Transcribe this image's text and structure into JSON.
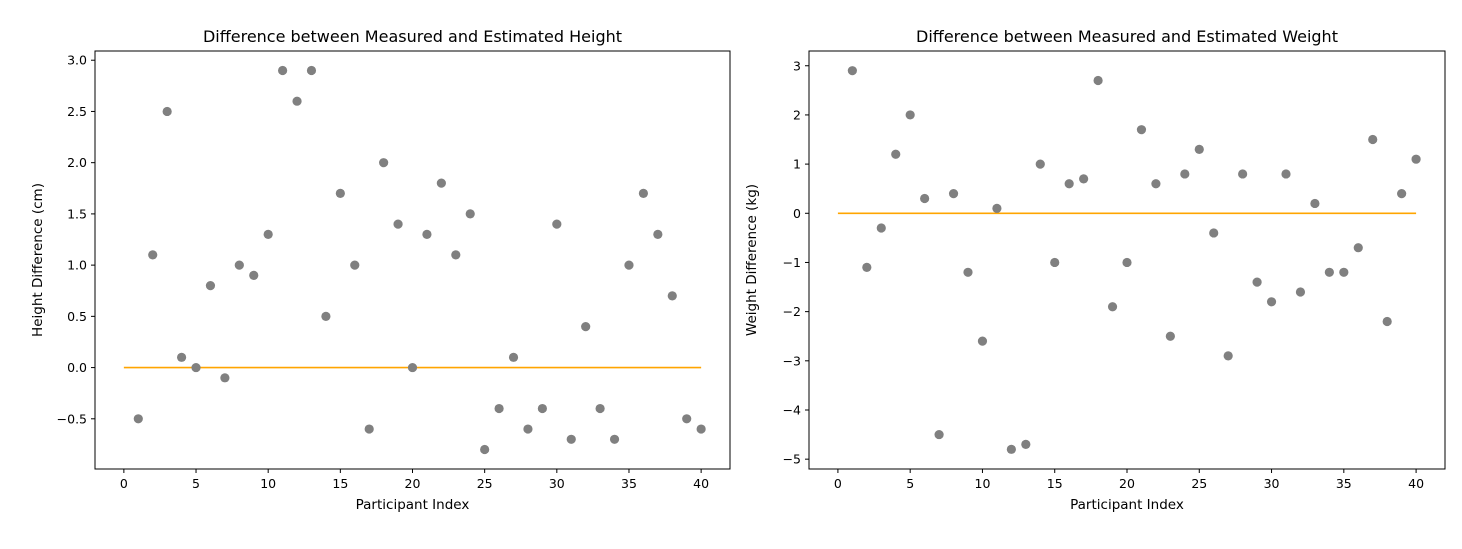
{
  "colors": {
    "points": "#808080",
    "reference_line": "#FFA500",
    "axes": "#000000",
    "background": "#ffffff"
  },
  "chart_data": [
    {
      "type": "scatter",
      "title": "Difference between Measured and Estimated Height",
      "xlabel": "Participant Index",
      "ylabel": "Height Difference (cm)",
      "xlim": [
        -2,
        42
      ],
      "ylim": [
        -0.99,
        3.09
      ],
      "xticks": [
        0,
        5,
        10,
        15,
        20,
        25,
        30,
        35,
        40
      ],
      "xtick_labels": [
        "0",
        "5",
        "10",
        "15",
        "20",
        "25",
        "30",
        "35",
        "40"
      ],
      "yticks": [
        -0.5,
        0.0,
        0.5,
        1.0,
        1.5,
        2.0,
        2.5,
        3.0
      ],
      "ytick_labels": [
        "−0.5",
        "0.0",
        "0.5",
        "1.0",
        "1.5",
        "2.0",
        "2.5",
        "3.0"
      ],
      "grid": false,
      "x": [
        1,
        2,
        3,
        4,
        5,
        6,
        7,
        8,
        9,
        10,
        11,
        12,
        13,
        14,
        15,
        16,
        17,
        18,
        19,
        20,
        21,
        22,
        23,
        24,
        25,
        26,
        27,
        28,
        29,
        30,
        31,
        32,
        33,
        34,
        35,
        36,
        37,
        38,
        39,
        40
      ],
      "y": [
        -0.5,
        1.1,
        2.5,
        0.1,
        0.0,
        0.8,
        -0.1,
        1.0,
        0.9,
        1.3,
        2.9,
        2.6,
        2.9,
        0.5,
        1.7,
        1.0,
        -0.6,
        2.0,
        1.4,
        0.0,
        1.3,
        1.8,
        1.1,
        1.5,
        -0.8,
        -0.4,
        0.1,
        -0.6,
        -0.4,
        1.4,
        -0.7,
        0.4,
        -0.4,
        -0.7,
        1.0,
        1.7,
        1.3,
        0.7,
        -0.5,
        -0.6
      ],
      "reference_line": {
        "y": 0,
        "x_range": [
          0,
          40
        ]
      }
    },
    {
      "type": "scatter",
      "title": "Difference between Measured and Estimated Weight",
      "xlabel": "Participant Index",
      "ylabel": "Weight Difference (kg)",
      "xlim": [
        -2,
        42
      ],
      "ylim": [
        -5.2,
        3.3
      ],
      "xticks": [
        0,
        5,
        10,
        15,
        20,
        25,
        30,
        35,
        40
      ],
      "xtick_labels": [
        "0",
        "5",
        "10",
        "15",
        "20",
        "25",
        "30",
        "35",
        "40"
      ],
      "yticks": [
        -5,
        -4,
        -3,
        -2,
        -1,
        0,
        1,
        2,
        3
      ],
      "ytick_labels": [
        "−5",
        "−4",
        "−3",
        "−2",
        "−1",
        "0",
        "1",
        "2",
        "3"
      ],
      "grid": false,
      "x": [
        1,
        2,
        3,
        4,
        5,
        6,
        7,
        8,
        9,
        10,
        11,
        12,
        13,
        14,
        15,
        16,
        17,
        18,
        19,
        20,
        21,
        22,
        23,
        24,
        25,
        26,
        27,
        28,
        29,
        30,
        31,
        32,
        33,
        34,
        35,
        36,
        37,
        38,
        39,
        40
      ],
      "y": [
        2.9,
        -1.1,
        -0.3,
        1.2,
        2.0,
        0.3,
        -4.5,
        0.4,
        -1.2,
        -2.6,
        0.1,
        -4.8,
        -4.7,
        1.0,
        -1.0,
        0.6,
        0.7,
        2.7,
        -1.9,
        -1.0,
        1.7,
        0.6,
        -2.5,
        0.8,
        1.3,
        -0.4,
        -2.9,
        0.8,
        -1.4,
        -1.8,
        0.8,
        -1.6,
        0.2,
        -1.2,
        -1.2,
        -0.7,
        1.5,
        -2.2,
        0.4,
        1.1
      ],
      "reference_line": {
        "y": 0,
        "x_range": [
          0,
          40
        ]
      }
    }
  ]
}
